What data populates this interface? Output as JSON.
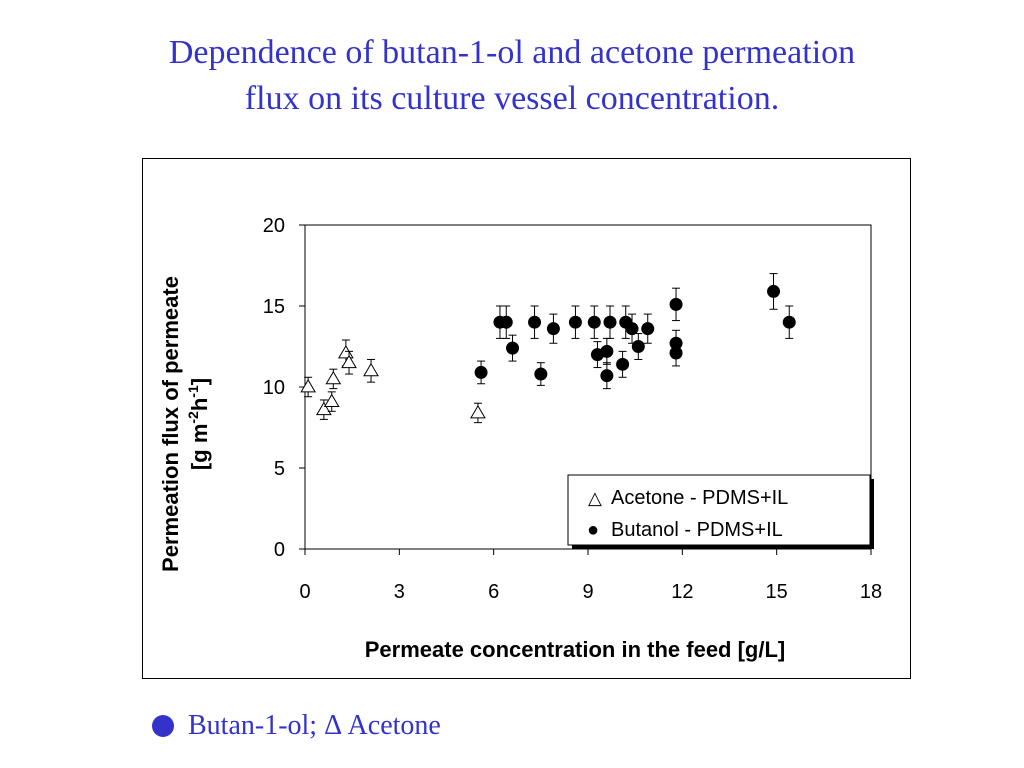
{
  "slide": {
    "title_line1": "Dependence of butan-1-ol and acetone permeation",
    "title_line2": "flux on its culture vessel concentration.",
    "caption": "Butan-1-ol; Δ Acetone"
  },
  "colors": {
    "title": "#3333cc",
    "caption": "#3333cc",
    "axes": "#000000"
  },
  "chart_data": {
    "type": "scatter",
    "xlabel": "Permeate concentration in the feed [g/L]",
    "ylabel_line1": "Permeation flux of permeate",
    "ylabel_line2": {
      "prefix": "[g m",
      "sup1": "-2",
      "mid": "h",
      "sup2": "-1",
      "suffix": "]"
    },
    "xlim": [
      0,
      18
    ],
    "ylim": [
      0,
      20
    ],
    "x_ticks": [
      0,
      3,
      6,
      9,
      12,
      15,
      18
    ],
    "x_tick_labels": [
      "0",
      "3",
      "6",
      "9",
      "12",
      "15",
      "18"
    ],
    "y_ticks": [
      0,
      5,
      10,
      15,
      20
    ],
    "y_tick_labels": [
      "0",
      "5",
      "10",
      "15",
      "20"
    ],
    "grid": false,
    "legend_position": "bottom-right",
    "series": [
      {
        "name": "Acetone - PDMS+IL",
        "legend_symbol": "△",
        "marker": "open-triangle",
        "points": [
          {
            "x": 0.1,
            "y": 10.0,
            "err": 0.6
          },
          {
            "x": 0.6,
            "y": 8.6,
            "err": 0.6
          },
          {
            "x": 0.85,
            "y": 9.1,
            "err": 0.6
          },
          {
            "x": 0.9,
            "y": 10.5,
            "err": 0.6
          },
          {
            "x": 1.3,
            "y": 12.1,
            "err": 0.8
          },
          {
            "x": 1.4,
            "y": 11.5,
            "err": 0.7
          },
          {
            "x": 2.1,
            "y": 11.0,
            "err": 0.7
          },
          {
            "x": 5.5,
            "y": 8.4,
            "err": 0.6
          }
        ]
      },
      {
        "name": "Butanol - PDMS+IL",
        "legend_symbol": "●",
        "marker": "filled-circle",
        "points": [
          {
            "x": 5.6,
            "y": 10.9,
            "err": 0.7
          },
          {
            "x": 6.2,
            "y": 14.0,
            "err": 1.0
          },
          {
            "x": 6.4,
            "y": 14.0,
            "err": 1.0
          },
          {
            "x": 6.6,
            "y": 12.4,
            "err": 0.8
          },
          {
            "x": 7.3,
            "y": 14.0,
            "err": 1.0
          },
          {
            "x": 7.5,
            "y": 10.8,
            "err": 0.7
          },
          {
            "x": 7.9,
            "y": 13.6,
            "err": 0.9
          },
          {
            "x": 8.6,
            "y": 14.0,
            "err": 1.0
          },
          {
            "x": 9.2,
            "y": 14.0,
            "err": 1.0
          },
          {
            "x": 9.3,
            "y": 12.0,
            "err": 0.8
          },
          {
            "x": 9.6,
            "y": 12.2,
            "err": 0.8
          },
          {
            "x": 9.6,
            "y": 10.7,
            "err": 0.8
          },
          {
            "x": 9.7,
            "y": 14.0,
            "err": 1.0
          },
          {
            "x": 10.1,
            "y": 11.4,
            "err": 0.8
          },
          {
            "x": 10.2,
            "y": 14.0,
            "err": 1.0
          },
          {
            "x": 10.4,
            "y": 13.6,
            "err": 0.9
          },
          {
            "x": 10.6,
            "y": 12.5,
            "err": 0.8
          },
          {
            "x": 10.9,
            "y": 13.6,
            "err": 0.9
          },
          {
            "x": 11.8,
            "y": 15.1,
            "err": 1.0
          },
          {
            "x": 11.8,
            "y": 12.7,
            "err": 0.8
          },
          {
            "x": 11.8,
            "y": 12.1,
            "err": 0.8
          },
          {
            "x": 14.9,
            "y": 15.9,
            "err": 1.1
          },
          {
            "x": 15.4,
            "y": 14.0,
            "err": 1.0
          }
        ]
      }
    ]
  }
}
